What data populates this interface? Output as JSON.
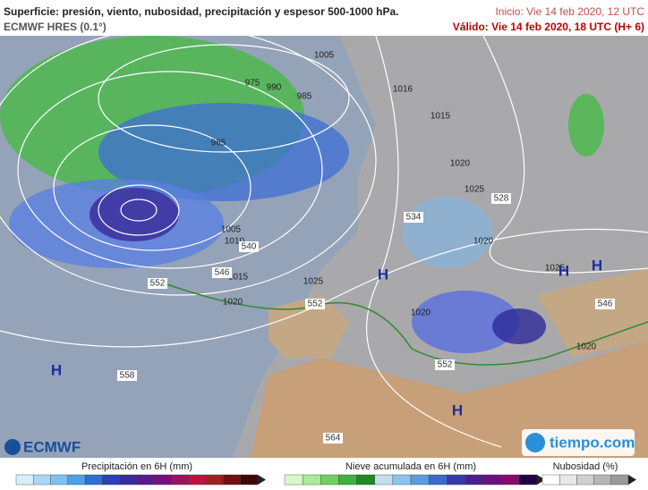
{
  "header": {
    "title": "Superficie: presión, viento, nubosidad, precipitación y espesor 500-1000 hPa.",
    "model": "ECMWF HRES (0.1°)",
    "init": "Inicio: Vie 14 feb 2020, 12 UTC",
    "valid": "Válido: Vie 14 feb 2020, 18 UTC (H+ 6)"
  },
  "map": {
    "isobar_labels": [
      "1005",
      "965",
      "985",
      "975",
      "990",
      "1016",
      "1015",
      "1020",
      "1025",
      "1020",
      "1010",
      "1005",
      "1015",
      "1025",
      "1020",
      "1020",
      "1025",
      "1020"
    ],
    "thickness_labels": [
      "552",
      "552",
      "552",
      "546",
      "540",
      "558",
      "564",
      "534",
      "528",
      "546"
    ],
    "pressure_centers": [
      "H",
      "H",
      "H",
      "H",
      "H"
    ]
  },
  "logos": {
    "left": "ECMWF",
    "right": "tiempo.com"
  },
  "legend": [
    {
      "title": "Precipitación en 6H (mm)"
    },
    {
      "title": "Nieve acumulada en 6H (mm)"
    },
    {
      "title": "Nubosidad (%)"
    }
  ]
}
